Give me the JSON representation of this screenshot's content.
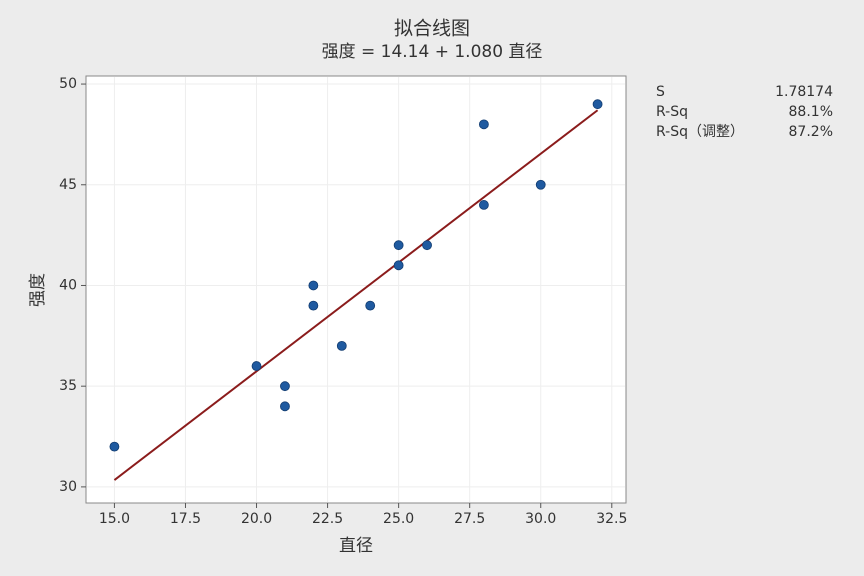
{
  "chart_data": {
    "type": "scatter",
    "title": "拟合线图",
    "subtitle": "强度 = 14.14 + 1.080 直径",
    "x_label": "直径",
    "y_label": "强度",
    "points": {
      "color": "#1f5aa0",
      "x": [
        15,
        20,
        21,
        21,
        22,
        22,
        23,
        24,
        25,
        25,
        26,
        28,
        28,
        30,
        32
      ],
      "values": [
        32,
        36,
        35,
        34,
        40,
        39,
        37,
        39,
        42,
        41,
        42,
        48,
        44,
        45,
        49
      ]
    },
    "fit_line": {
      "color": "#8b1c1c",
      "x": [
        15,
        32
      ],
      "values": [
        30.34,
        48.7
      ]
    },
    "xlim": [
      14,
      33
    ],
    "xticks": [
      {
        "value": 15,
        "label": "15.0"
      },
      {
        "value": 17.5,
        "label": "17.5"
      },
      {
        "value": 20,
        "label": "20.0"
      },
      {
        "value": 22.5,
        "label": "22.5"
      },
      {
        "value": 25,
        "label": "25.0"
      },
      {
        "value": 27.5,
        "label": "27.5"
      },
      {
        "value": 30,
        "label": "30.0"
      },
      {
        "value": 32.5,
        "label": "32.5"
      }
    ],
    "ylim": [
      29.2,
      50.4
    ],
    "yticks": [
      30,
      35,
      40,
      45,
      50
    ],
    "grid": true,
    "stats": [
      {
        "label": "S",
        "value": "1.78174"
      },
      {
        "label": "R-Sq",
        "value": "88.1%"
      },
      {
        "label": "R-Sq（调整）",
        "value": "87.2%"
      }
    ]
  }
}
